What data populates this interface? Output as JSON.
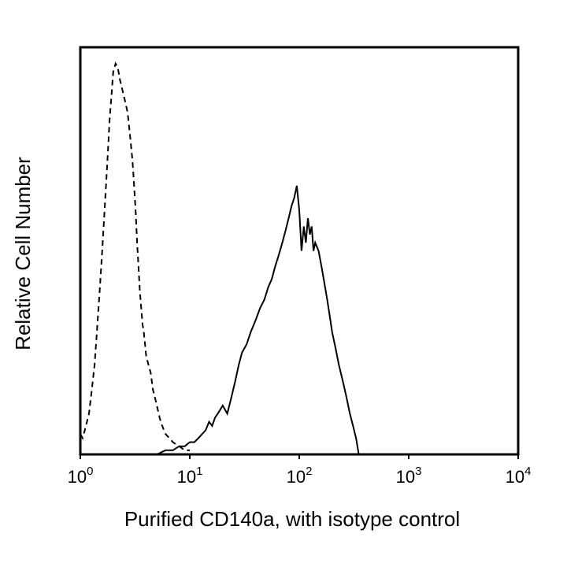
{
  "chart_data": {
    "type": "line",
    "title": "",
    "xlabel": "Purified CD140a, with isotype control",
    "ylabel": "Relative Cell Number",
    "x_scale": "log",
    "xlim": [
      1,
      10000
    ],
    "ylim": [
      0,
      100
    ],
    "grid": false,
    "x_ticks": [
      {
        "base": "10",
        "exp": "0",
        "value": 1
      },
      {
        "base": "10",
        "exp": "1",
        "value": 10
      },
      {
        "base": "10",
        "exp": "2",
        "value": 100
      },
      {
        "base": "10",
        "exp": "3",
        "value": 1000
      },
      {
        "base": "10",
        "exp": "4",
        "value": 10000
      }
    ],
    "series": [
      {
        "style": "dashed",
        "color": "#000000",
        "x": [
          1.0,
          1.05,
          1.1,
          1.15,
          1.2,
          1.25,
          1.3,
          1.35,
          1.4,
          1.45,
          1.5,
          1.55,
          1.6,
          1.65,
          1.7,
          1.75,
          1.8,
          1.85,
          1.9,
          1.95,
          2.0,
          2.1,
          2.2,
          2.3,
          2.4,
          2.5,
          2.6,
          2.7,
          2.8,
          2.9,
          3.0,
          3.1,
          3.2,
          3.3,
          3.4,
          3.5,
          3.6,
          3.7,
          3.8,
          3.9,
          4.0,
          4.2,
          4.4,
          4.6,
          4.8,
          5.0,
          5.3,
          5.6,
          6.0,
          6.5,
          7.0,
          8.0,
          9.0,
          10.0
        ],
        "y": [
          5,
          4,
          6,
          8,
          10,
          14,
          18,
          22,
          28,
          34,
          40,
          46,
          52,
          58,
          64,
          70,
          76,
          82,
          86,
          90,
          94,
          96,
          95,
          92,
          90,
          88,
          86,
          84,
          80,
          76,
          72,
          66,
          60,
          52,
          46,
          40,
          36,
          32,
          30,
          27,
          24,
          22,
          20,
          16,
          14,
          12,
          9,
          7,
          5,
          4,
          3,
          2,
          1,
          1
        ]
      },
      {
        "style": "solid",
        "color": "#000000",
        "x": [
          5.0,
          6.0,
          7.0,
          8.0,
          9.0,
          10,
          11,
          12,
          13,
          14,
          15,
          16,
          17,
          18,
          19,
          20,
          22,
          24,
          26,
          28,
          30,
          33,
          36,
          40,
          44,
          48,
          52,
          56,
          60,
          65,
          70,
          75,
          80,
          85,
          90,
          95,
          100,
          105,
          110,
          115,
          120,
          125,
          130,
          135,
          140,
          150,
          160,
          170,
          180,
          190,
          200,
          215,
          230,
          250,
          270,
          290,
          310,
          330,
          350
        ],
        "y": [
          0,
          1,
          1,
          2,
          2,
          3,
          3,
          4,
          5,
          6,
          8,
          7,
          9,
          10,
          11,
          12,
          10,
          14,
          18,
          22,
          25,
          27,
          30,
          33,
          36,
          38,
          41,
          43,
          46,
          49,
          52,
          55,
          58,
          61,
          63,
          66,
          60,
          50,
          56,
          52,
          58,
          54,
          56,
          50,
          52,
          50,
          46,
          42,
          38,
          34,
          30,
          26,
          22,
          18,
          14,
          10,
          7,
          4,
          0
        ]
      }
    ]
  }
}
